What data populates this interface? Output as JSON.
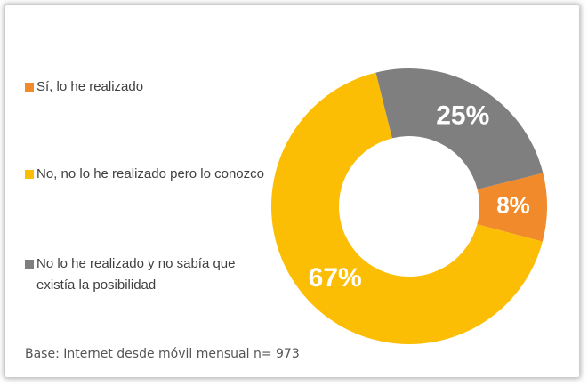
{
  "chart_data": {
    "type": "donut",
    "categories": [
      "Sí, lo he realizado",
      "No, no lo he realizado pero lo conozco",
      "No lo he realizado y no sabía que existía la posibilidad"
    ],
    "values": [
      8,
      67,
      25
    ],
    "value_labels": [
      "8%",
      "67%",
      "25%"
    ],
    "colors": [
      "#f08a2b",
      "#fcbd05",
      "#7f7f7f"
    ],
    "note": "Base: Internet desde móvil mensual n= 973"
  }
}
